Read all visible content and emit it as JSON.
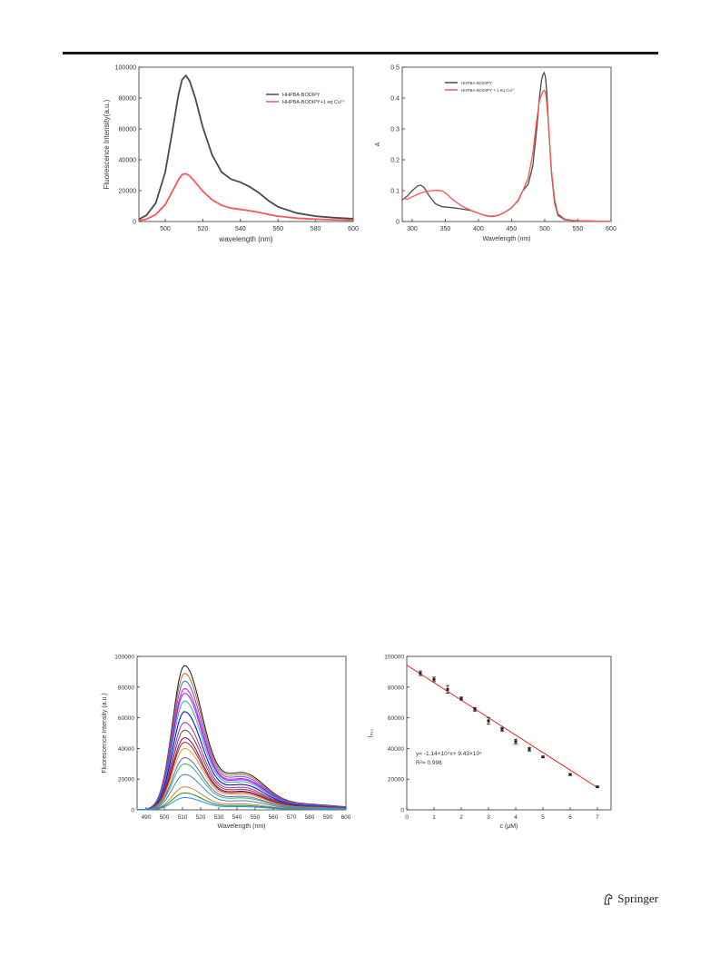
{
  "page": {
    "publisher": "Springer",
    "publisher_icon": "springer-horse-icon"
  },
  "chart_data": [
    {
      "type": "line",
      "xlabel": "wavelength (nm)",
      "ylabel": "Fluorescence Intensity(a.u.)",
      "xlim": [
        486,
        600
      ],
      "ylim": [
        0,
        100000
      ],
      "xticks": [
        500,
        520,
        540,
        560,
        580,
        600
      ],
      "yticks": [
        0,
        20000,
        40000,
        60000,
        80000,
        100000
      ],
      "legend_position": "top-right",
      "grid": false,
      "series": [
        {
          "name": "HHPBA-BODIPY",
          "color": "#4a4a4a",
          "x": [
            486,
            490,
            495,
            500,
            504,
            507,
            509,
            511,
            513,
            516,
            520,
            525,
            530,
            535,
            540,
            545,
            550,
            555,
            560,
            570,
            580,
            590,
            600
          ],
          "y": [
            1500,
            4000,
            12000,
            32000,
            60000,
            82000,
            92000,
            94500,
            91000,
            80000,
            61000,
            43000,
            32000,
            27500,
            25500,
            22500,
            18500,
            13500,
            9500,
            5500,
            3500,
            2500,
            1800
          ]
        },
        {
          "name": "HHPBA-BODIPY+1 eq Cu²⁺",
          "color": "#ff5555",
          "x": [
            486,
            490,
            495,
            500,
            504,
            507,
            509,
            511,
            513,
            516,
            520,
            525,
            530,
            535,
            540,
            545,
            550,
            555,
            560,
            570,
            580,
            590,
            600
          ],
          "y": [
            600,
            1500,
            4500,
            11000,
            20000,
            27000,
            30500,
            31000,
            29500,
            25500,
            19500,
            14000,
            10500,
            8700,
            7800,
            7000,
            5900,
            4600,
            3500,
            2200,
            1500,
            1100,
            900
          ]
        }
      ]
    },
    {
      "type": "line",
      "xlabel": "Wavelength (nm)",
      "ylabel": "A",
      "xlim": [
        285,
        600
      ],
      "ylim": [
        0,
        0.5
      ],
      "xticks": [
        300,
        350,
        400,
        450,
        500,
        550,
        600
      ],
      "yticks": [
        0.0,
        0.1,
        0.2,
        0.3,
        0.4,
        0.5
      ],
      "legend_position": "top-right",
      "grid": false,
      "series": [
        {
          "name": "HHPBA-BODIPY",
          "color": "#4a4a4a",
          "x": [
            285,
            293,
            300,
            308,
            313,
            318,
            325,
            335,
            345,
            360,
            375,
            390,
            400,
            410,
            420,
            430,
            440,
            450,
            460,
            467,
            475,
            482,
            488,
            492,
            495,
            497,
            499,
            501,
            503,
            506,
            510,
            515,
            520,
            530,
            545,
            560,
            580,
            600
          ],
          "y": [
            0.07,
            0.083,
            0.1,
            0.115,
            0.118,
            0.11,
            0.085,
            0.058,
            0.048,
            0.045,
            0.041,
            0.035,
            0.027,
            0.019,
            0.016,
            0.02,
            0.03,
            0.045,
            0.068,
            0.1,
            0.12,
            0.18,
            0.3,
            0.4,
            0.455,
            0.475,
            0.482,
            0.47,
            0.42,
            0.3,
            0.16,
            0.06,
            0.02,
            0.006,
            0.003,
            0.002,
            0.001,
            0.001
          ]
        },
        {
          "name": "HHPBA-BODIPY + 1 eq Cu²⁺",
          "color": "#ff5555",
          "x": [
            285,
            293,
            300,
            310,
            320,
            330,
            338,
            345,
            352,
            360,
            375,
            390,
            400,
            410,
            420,
            430,
            440,
            450,
            460,
            467,
            475,
            482,
            488,
            492,
            495,
            497,
            499,
            501,
            503,
            506,
            510,
            515,
            520,
            530,
            545,
            560,
            580,
            600
          ],
          "y": [
            0.075,
            0.072,
            0.08,
            0.09,
            0.097,
            0.1,
            0.101,
            0.099,
            0.09,
            0.073,
            0.05,
            0.035,
            0.027,
            0.02,
            0.017,
            0.02,
            0.03,
            0.045,
            0.07,
            0.1,
            0.14,
            0.22,
            0.33,
            0.39,
            0.41,
            0.42,
            0.425,
            0.42,
            0.385,
            0.3,
            0.17,
            0.07,
            0.025,
            0.008,
            0.003,
            0.002,
            0.001,
            0.001
          ]
        }
      ]
    },
    {
      "type": "line",
      "xlabel": "Wavelength (nm)",
      "ylabel": "Fluorescence Intensity (a.u.)",
      "xlim": [
        485,
        600
      ],
      "ylim": [
        0,
        100000
      ],
      "xticks": [
        490,
        500,
        510,
        520,
        530,
        540,
        550,
        560,
        570,
        580,
        590,
        600
      ],
      "yticks": [
        0,
        20000,
        40000,
        60000,
        80000,
        100000
      ],
      "legend_position": "none",
      "grid": false,
      "peak_wavelength": 511,
      "series": [
        {
          "color": "#1a1a1a",
          "peak": 94000
        },
        {
          "color": "#d2691e",
          "peak": 89000
        },
        {
          "color": "#4169e1",
          "peak": 84000
        },
        {
          "color": "#ff00ff",
          "peak": 79000
        },
        {
          "color": "#8a2be2",
          "peak": 76000
        },
        {
          "color": "#20b2aa",
          "peak": 71000
        },
        {
          "color": "#0000cd",
          "peak": 64000
        },
        {
          "color": "#9932cc",
          "peak": 57000
        },
        {
          "color": "#8b4513",
          "peak": 52000
        },
        {
          "color": "#800080",
          "peak": 47000
        },
        {
          "color": "#b22222",
          "peak": 44000
        },
        {
          "color": "#daa520",
          "peak": 40000
        },
        {
          "color": "#6a5acd",
          "peak": 34000
        },
        {
          "color": "#3cb371",
          "peak": 30000
        },
        {
          "color": "#4682b4",
          "peak": 23000
        },
        {
          "color": "#cd853f",
          "peak": 15000
        },
        {
          "color": "#228b22",
          "peak": 11000
        },
        {
          "color": "#1e90ff",
          "peak": 8000
        }
      ]
    },
    {
      "type": "scatter",
      "xlabel": "c (μM)",
      "ylabel": "I₅₁₁",
      "xlim": [
        0,
        7.5
      ],
      "ylim": [
        0,
        100000
      ],
      "xticks": [
        0,
        1,
        2,
        3,
        4,
        5,
        6,
        7
      ],
      "yticks": [
        0,
        20000,
        40000,
        60000,
        80000,
        100000
      ],
      "grid": false,
      "points": {
        "x": [
          0.5,
          1.0,
          1.5,
          2.0,
          2.5,
          3.0,
          3.5,
          4.0,
          4.5,
          5.0,
          6.0,
          7.0
        ],
        "y": [
          89000,
          85000,
          78500,
          72500,
          65500,
          58000,
          52500,
          44500,
          39500,
          34500,
          23000,
          15000
        ],
        "err": [
          1500,
          1500,
          2500,
          1000,
          1200,
          2200,
          1200,
          1500,
          1200,
          500,
          600,
          400
        ]
      },
      "fit": {
        "slope": -11400,
        "intercept": 94300,
        "color": "#ee2222",
        "x_range": [
          0,
          7
        ]
      },
      "equation_label": "y= -1.14×10⁴x+ 9.43×10⁴",
      "r2_label": "R²= 0.998"
    }
  ]
}
